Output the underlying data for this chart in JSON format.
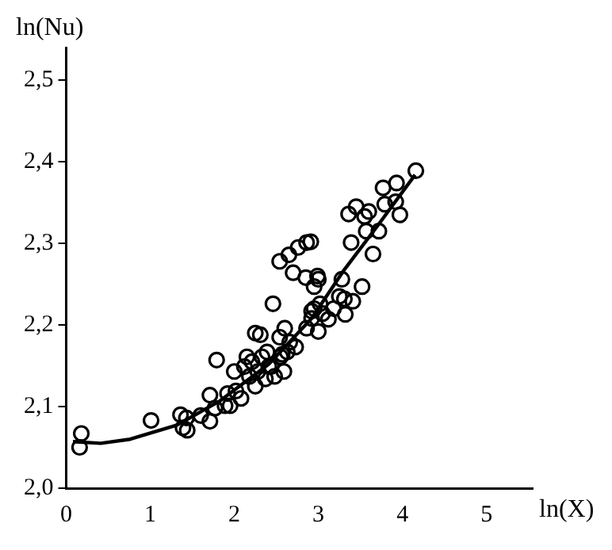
{
  "chart_data": {
    "type": "scatter",
    "xlabel": "ln(X)",
    "ylabel": "ln(Nu)",
    "xlim": [
      0,
      5.55
    ],
    "xticks": [
      0,
      1,
      2,
      3,
      4,
      5
    ],
    "ylim": [
      2.0,
      2.54
    ],
    "yticks": [
      {
        "value": 2.0,
        "label": "2,0"
      },
      {
        "value": 2.1,
        "label": "2,1"
      },
      {
        "value": 2.2,
        "label": "2,2"
      },
      {
        "value": 2.3,
        "label": "2,3"
      },
      {
        "value": 2.4,
        "label": "2,4"
      },
      {
        "value": 2.5,
        "label": "2,5"
      }
    ],
    "grid": false,
    "legend": false,
    "marker": "circle",
    "series": [
      {
        "color": "#000000",
        "x": [
          0.18,
          0.16,
          1.01,
          1.36,
          1.39,
          1.44,
          1.43,
          1.6,
          1.71,
          1.71,
          1.79,
          1.77,
          1.89,
          1.95,
          1.92,
          2.0,
          2.02,
          2.08,
          2.12,
          2.18,
          2.21,
          2.25,
          2.28,
          2.31,
          2.33,
          2.37,
          2.39,
          2.44,
          2.46,
          2.48,
          2.54,
          2.55,
          2.59,
          2.6,
          2.63,
          2.66,
          2.73,
          2.54,
          2.65,
          2.76,
          2.86,
          2.91,
          2.7,
          2.85,
          2.99,
          3.0,
          2.95,
          2.86,
          2.92,
          2.95,
          3.0,
          3.02,
          3.05,
          3.12,
          3.18,
          3.28,
          3.25,
          3.31,
          3.32,
          3.41,
          3.52,
          3.39,
          3.36,
          3.45,
          3.55,
          3.6,
          3.57,
          3.72,
          3.65,
          3.77,
          3.79,
          3.92,
          3.93,
          3.97,
          4.16,
          2.25,
          2.15,
          2.41,
          2.57,
          2.92
        ],
        "values": [
          2.067,
          2.05,
          2.083,
          2.09,
          2.074,
          2.071,
          2.086,
          2.089,
          2.114,
          2.082,
          2.157,
          2.098,
          2.101,
          2.101,
          2.116,
          2.143,
          2.119,
          2.11,
          2.149,
          2.137,
          2.155,
          2.125,
          2.143,
          2.188,
          2.161,
          2.134,
          2.167,
          2.149,
          2.226,
          2.137,
          2.185,
          2.161,
          2.143,
          2.196,
          2.167,
          2.179,
          2.173,
          2.278,
          2.286,
          2.295,
          2.301,
          2.302,
          2.264,
          2.258,
          2.26,
          2.256,
          2.247,
          2.196,
          2.208,
          2.22,
          2.192,
          2.226,
          2.214,
          2.207,
          2.22,
          2.256,
          2.235,
          2.232,
          2.213,
          2.229,
          2.247,
          2.301,
          2.336,
          2.345,
          2.333,
          2.339,
          2.315,
          2.315,
          2.287,
          2.368,
          2.348,
          2.351,
          2.374,
          2.335,
          2.389,
          2.19,
          2.161,
          2.149,
          2.164,
          2.217
        ]
      },
      {
        "type": "line",
        "color": "#000000",
        "marker": "none",
        "line_style": "solid",
        "x": [
          0.08,
          0.41,
          0.76,
          1.31,
          1.83,
          2.41,
          2.92,
          3.31,
          3.7,
          4.15
        ],
        "values": [
          2.057,
          2.055,
          2.06,
          2.077,
          2.107,
          2.152,
          2.208,
          2.268,
          2.321,
          2.384
        ]
      }
    ]
  }
}
